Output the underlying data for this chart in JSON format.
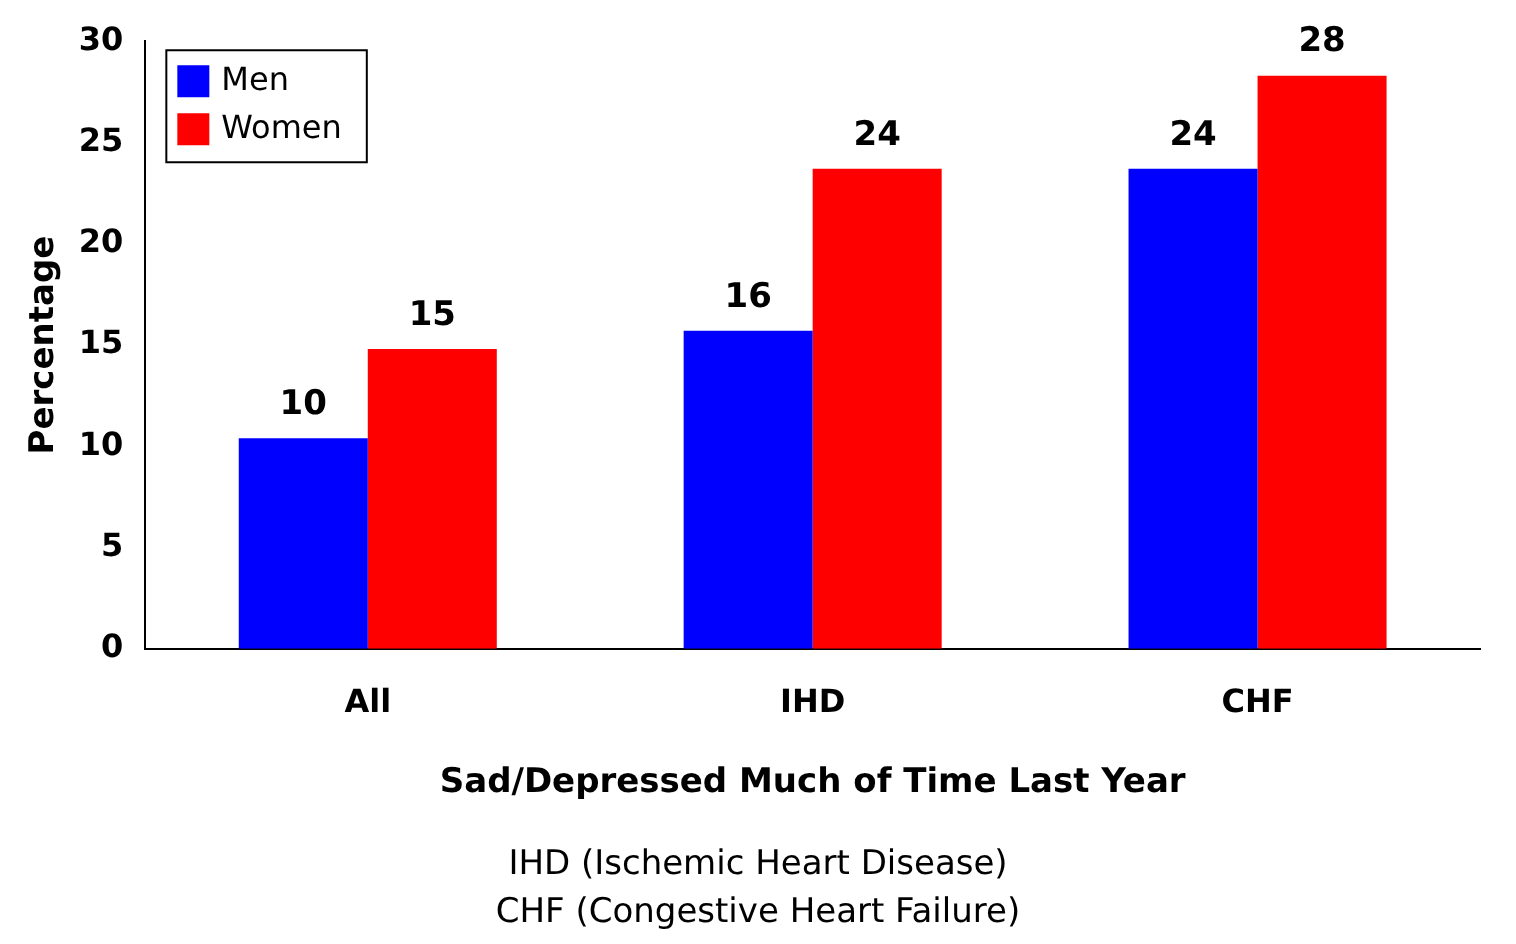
{
  "chart_data": {
    "type": "bar",
    "xlabel": "Sad/Depressed Much of Time Last Year",
    "ylabel": "Percentage",
    "categories": [
      "All",
      "IHD",
      "CHF"
    ],
    "series": [
      {
        "name": "Men",
        "color": "#0000ff",
        "values": [
          10.4,
          15.7,
          23.7
        ],
        "value_labels": [
          "10",
          "16",
          "24"
        ]
      },
      {
        "name": "Women",
        "color": "#ff0000",
        "values": [
          14.8,
          23.7,
          28.3
        ],
        "value_labels": [
          "15",
          "24",
          "28"
        ]
      }
    ],
    "ylim": [
      0,
      30
    ],
    "yticks": [
      0,
      5,
      10,
      15,
      20,
      25,
      30
    ],
    "grid": false,
    "legend": "top left",
    "annotations": [
      "IHD (Ischemic Heart Disease)",
      "CHF (Congestive Heart Failure)"
    ]
  }
}
